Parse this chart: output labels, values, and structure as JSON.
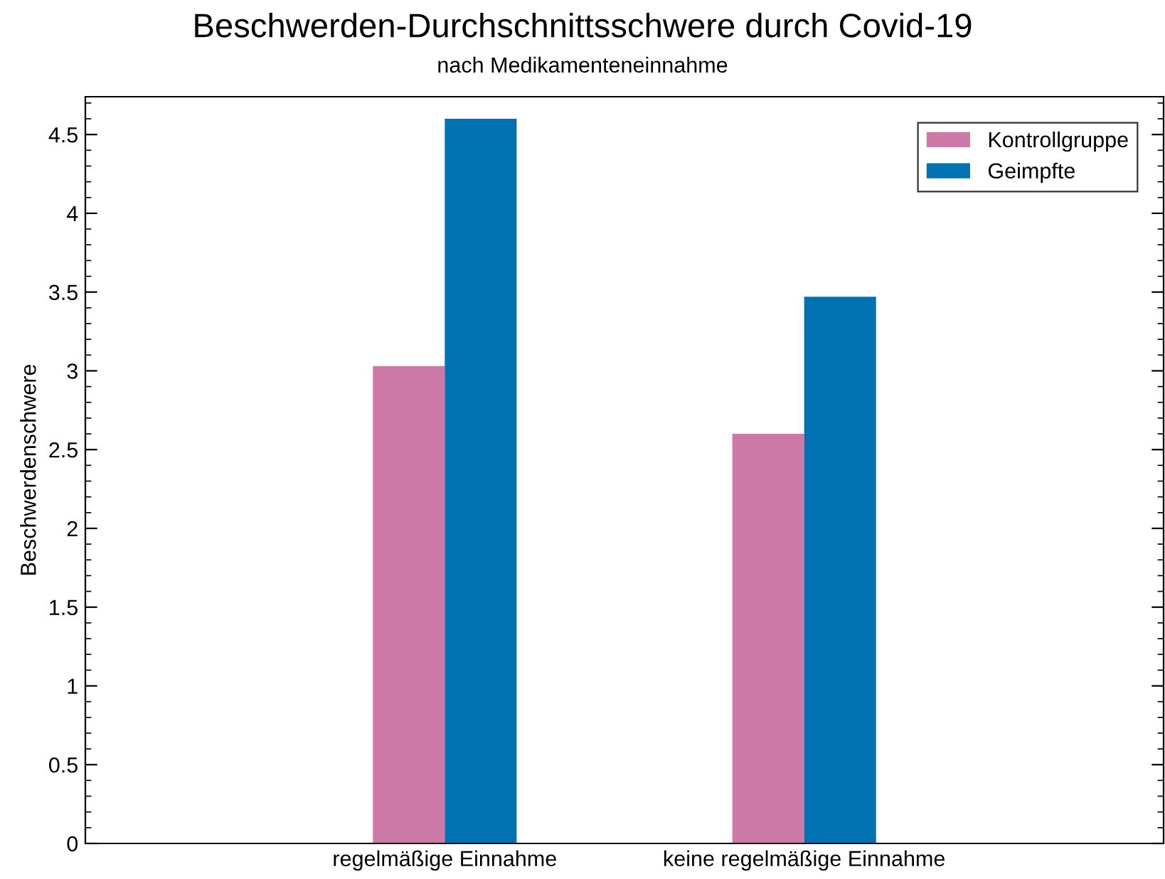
{
  "chart_data": {
    "type": "bar",
    "title": "Beschwerden-Durchschnittsschwere durch Covid-19",
    "subtitle": "nach Medikamenteneinnahme",
    "ylabel": "Beschwerdenschwere",
    "categories": [
      "regelmäßige Einnahme",
      "keine regelmäßige Einnahme"
    ],
    "series": [
      {
        "name": "Kontrollgruppe",
        "color": "#cc79a7",
        "values": [
          3.03,
          2.6
        ]
      },
      {
        "name": "Geimpfte",
        "color": "#0072b2",
        "values": [
          4.6,
          3.47
        ]
      }
    ],
    "ylim": [
      0,
      4.74
    ],
    "yticks": [
      0,
      0.5,
      1,
      1.5,
      2,
      2.5,
      3,
      3.5,
      4,
      4.5
    ],
    "grid": false,
    "legend": "top right"
  }
}
